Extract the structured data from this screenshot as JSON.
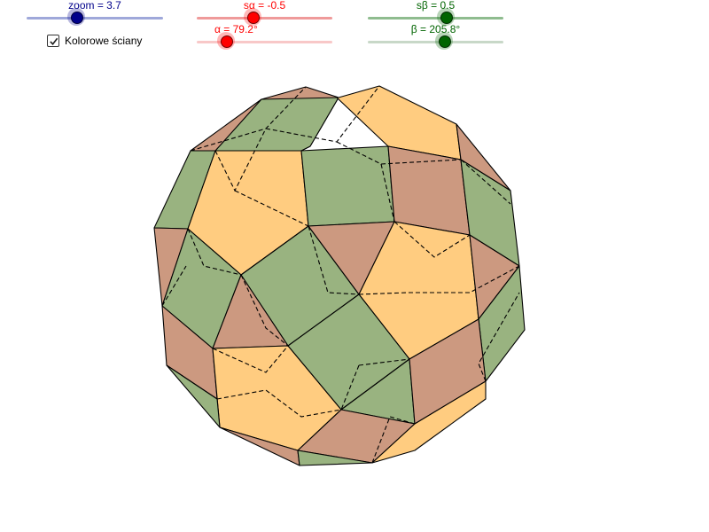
{
  "sliders": {
    "zoom": {
      "label": "zoom = 3.7",
      "value": 3.7,
      "color": "#00008b",
      "track": "#9fa8da"
    },
    "s_alpha": {
      "label": "sα = -0.5",
      "value": -0.5,
      "color": "#ff0000",
      "track": "#ef9a9a"
    },
    "alpha": {
      "label": "α = 79.2°",
      "value": 79.2,
      "color": "#ff0000",
      "track": "#f8c8c8"
    },
    "s_beta": {
      "label": "sβ = 0.5",
      "value": 0.5,
      "color": "#006400",
      "track": "#8fbc8f"
    },
    "beta": {
      "label": "β = 205.8°",
      "value": 205.8,
      "color": "#006400",
      "track": "#c8d8c8"
    }
  },
  "checkbox": {
    "label": "Kolorowe ściany",
    "checked": true
  },
  "face_colors": {
    "pentagon": "#ffcc80",
    "triangle": "#cc9980",
    "square": "#99b380"
  }
}
